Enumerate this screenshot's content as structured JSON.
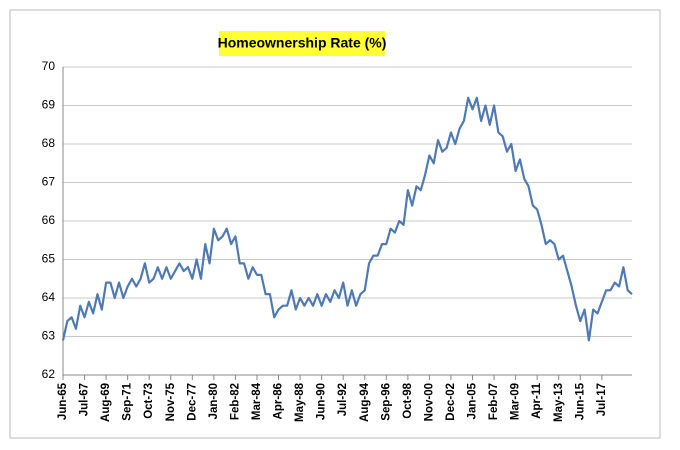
{
  "chart_data": {
    "type": "line",
    "title": "Homeownership Rate (%)",
    "categories": [
      "Jun-65",
      null,
      null,
      null,
      null,
      "Jul-67",
      null,
      null,
      null,
      null,
      "Aug-69",
      null,
      null,
      null,
      null,
      "Sep-71",
      null,
      null,
      null,
      null,
      "Oct-73",
      null,
      null,
      null,
      null,
      "Nov-75",
      null,
      null,
      null,
      null,
      "Dec-77",
      null,
      null,
      null,
      null,
      "Jan-80",
      null,
      null,
      null,
      null,
      "Feb-82",
      null,
      null,
      null,
      null,
      "Mar-84",
      null,
      null,
      null,
      null,
      "Apr-86",
      null,
      null,
      null,
      null,
      "May-88",
      null,
      null,
      null,
      null,
      "Jun-90",
      null,
      null,
      null,
      null,
      "Jul-92",
      null,
      null,
      null,
      null,
      "Aug-94",
      null,
      null,
      null,
      null,
      "Sep-96",
      null,
      null,
      null,
      null,
      "Oct-98",
      null,
      null,
      null,
      null,
      "Nov-00",
      null,
      null,
      null,
      null,
      "Dec-02",
      null,
      null,
      null,
      null,
      "Jan-05",
      null,
      null,
      null,
      null,
      "Feb-07",
      null,
      null,
      null,
      null,
      "Mar-09",
      null,
      null,
      null,
      null,
      "Apr-11",
      null,
      null,
      null,
      null,
      "May-13",
      null,
      null,
      null,
      null,
      "Jun-15",
      null,
      null,
      null,
      null,
      "Jul-17",
      null,
      null,
      null,
      null,
      null,
      null,
      null
    ],
    "series": [
      {
        "color": "#4f79b5",
        "values": [
          62.9,
          63.4,
          63.5,
          63.2,
          63.8,
          63.5,
          63.9,
          63.6,
          64.1,
          63.7,
          64.4,
          64.4,
          64.0,
          64.4,
          64.0,
          64.3,
          64.5,
          64.3,
          64.5,
          64.9,
          64.4,
          64.5,
          64.8,
          64.5,
          64.8,
          64.5,
          64.7,
          64.9,
          64.7,
          64.8,
          64.5,
          65.0,
          64.5,
          65.4,
          64.9,
          65.8,
          65.5,
          65.6,
          65.8,
          65.4,
          65.6,
          64.9,
          64.9,
          64.5,
          64.8,
          64.6,
          64.6,
          64.1,
          64.1,
          63.5,
          63.7,
          63.8,
          63.8,
          64.2,
          63.7,
          64.0,
          63.8,
          64.0,
          63.8,
          64.1,
          63.8,
          64.1,
          63.9,
          64.2,
          64.0,
          64.4,
          63.8,
          64.2,
          63.8,
          64.1,
          64.2,
          64.9,
          65.1,
          65.1,
          65.4,
          65.4,
          65.8,
          65.7,
          66.0,
          65.9,
          66.8,
          66.4,
          66.9,
          66.8,
          67.2,
          67.7,
          67.5,
          68.1,
          67.8,
          67.9,
          68.3,
          68.0,
          68.4,
          68.6,
          69.2,
          68.9,
          69.2,
          68.6,
          69.0,
          68.5,
          69.0,
          68.3,
          68.2,
          67.8,
          68.0,
          67.3,
          67.6,
          67.1,
          66.9,
          66.4,
          66.3,
          65.9,
          65.4,
          65.5,
          65.4,
          65.0,
          65.1,
          64.7,
          64.3,
          63.8,
          63.4,
          63.7,
          62.9,
          63.7,
          63.6,
          63.9,
          64.2,
          64.2,
          64.4,
          64.3,
          64.8,
          64.2,
          64.1
        ]
      }
    ],
    "ylim": [
      62,
      70
    ],
    "yticks": [
      62,
      63,
      64,
      65,
      66,
      67,
      68,
      69,
      70
    ],
    "grid": true
  }
}
